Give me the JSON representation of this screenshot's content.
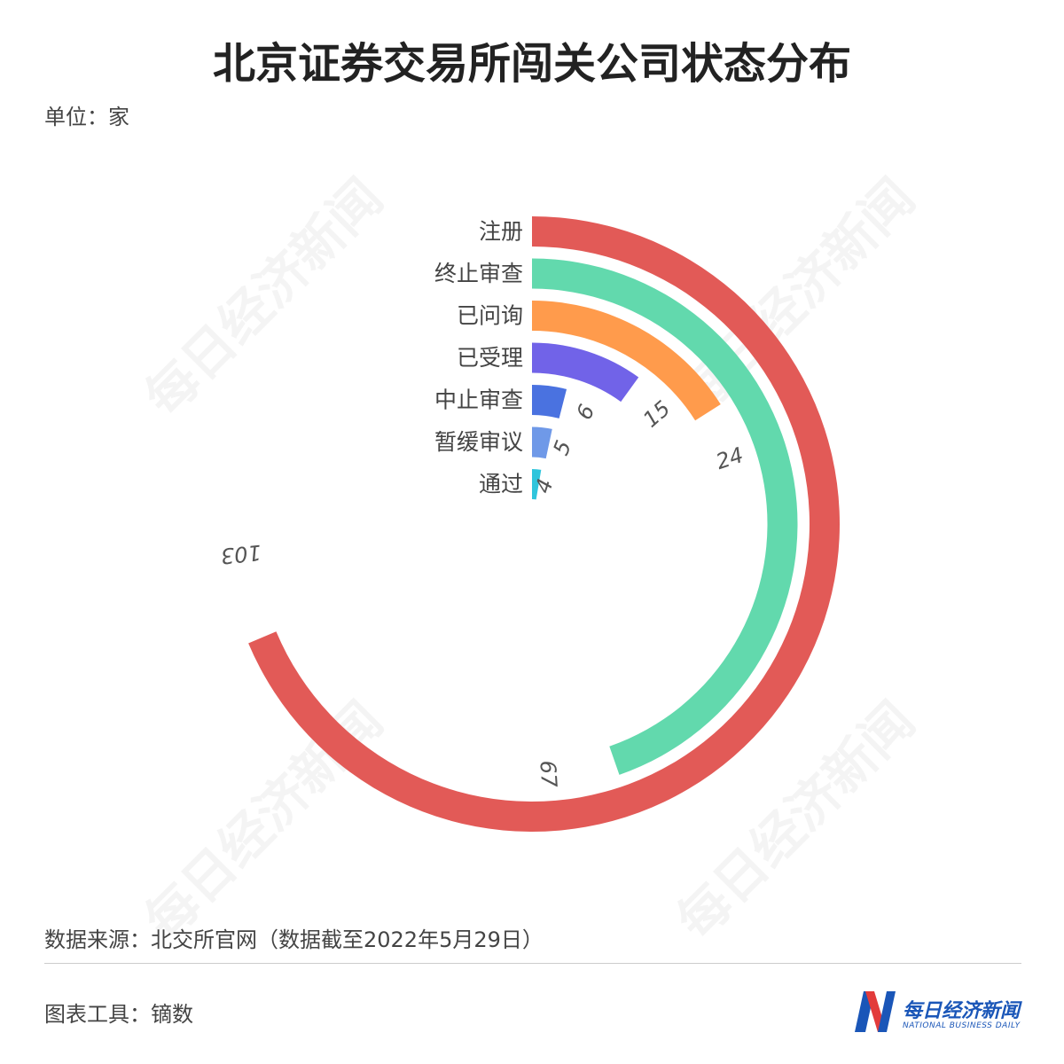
{
  "title": "北京证券交易所闯关公司状态分布",
  "unit": "单位：家",
  "watermark": "每日经济新闻",
  "source": "数据来源：北交所官网（数据截至2022年5月29日）",
  "tool": "图表工具：镝数",
  "logo": {
    "name": "每日经济新闻",
    "sub": "NATIONAL BUSINESS DAILY"
  },
  "chart_data": {
    "type": "radial-bar",
    "max_value": 150,
    "categories": [
      "注册",
      "终止审查",
      "已问询",
      "已受理",
      "中止审查",
      "暂缓审议",
      "通过"
    ],
    "values": [
      103,
      67,
      24,
      15,
      6,
      5,
      4
    ],
    "colors": [
      "#e25a57",
      "#62d9ad",
      "#ff9b4c",
      "#7163e8",
      "#4a72e0",
      "#6f99e8",
      "#2fc5dc"
    ]
  }
}
